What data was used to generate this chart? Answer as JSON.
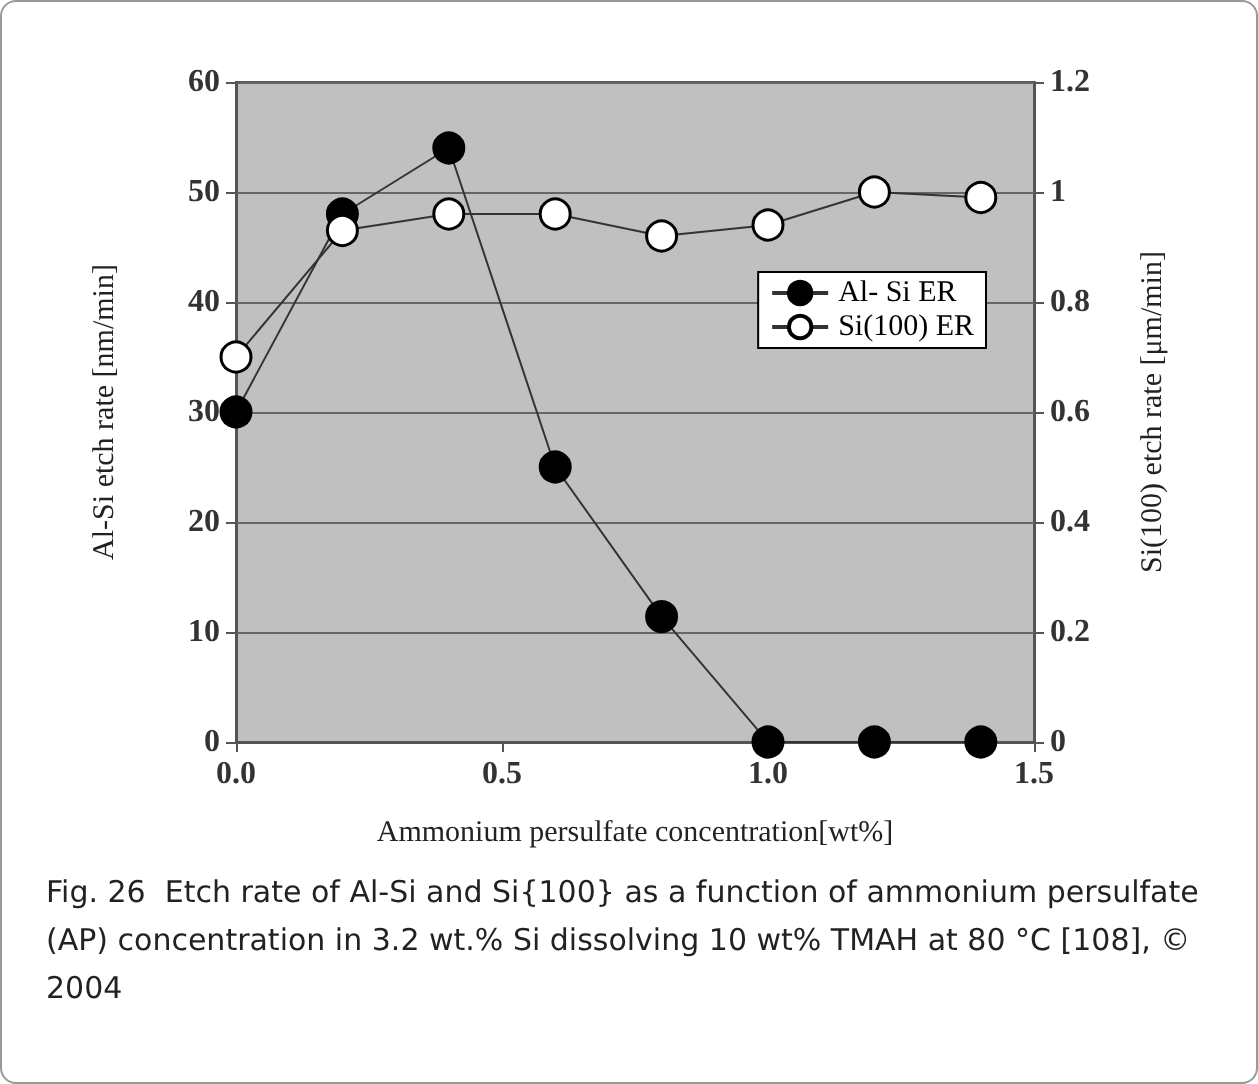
{
  "chart_data": {
    "type": "line",
    "xlabel": "Ammonium persulfate concentration[wt%]",
    "ylabel": "Al-Si etch rate [nm/min]",
    "y2label": "Si(100) etch rate [μm/min]",
    "x": [
      0,
      0.2,
      0.4,
      0.6,
      0.8,
      1.0,
      1.2,
      1.4
    ],
    "series": [
      {
        "name": "Al- Si ER",
        "color": "#000000",
        "values": [
          30,
          48,
          54,
          25,
          11.4,
          0,
          0,
          0
        ]
      },
      {
        "name": "Si(100) ER",
        "color": "#ffffff",
        "axis": "y2",
        "values": [
          0.7,
          0.93,
          0.96,
          0.96,
          0.92,
          0.94,
          1.0,
          0.99
        ]
      }
    ],
    "xlim": [
      0,
      1.5
    ],
    "xticks": [
      {
        "value": 0,
        "label": "0.0"
      },
      0.5,
      {
        "value": 1,
        "label": "1.0"
      },
      1.5
    ],
    "ylim": [
      0,
      60
    ],
    "yticks": [
      0,
      10,
      20,
      30,
      40,
      50,
      60
    ],
    "y2lim": [
      0,
      1.2
    ],
    "y2ticks": [
      0,
      0.2,
      0.4,
      0.6,
      0.8,
      1,
      1.2
    ],
    "grid": "y",
    "legend": "right",
    "marker": "circle",
    "line_style": "solid",
    "annotations": [
      "Fig. 26  Etch rate of Al-Si and Si{100} as a function of ammonium persulfate (AP) concentration in 3.2 wt.% Si dissolving 10 wt% TMAH at 80 °C [108], © 2004"
    ]
  }
}
